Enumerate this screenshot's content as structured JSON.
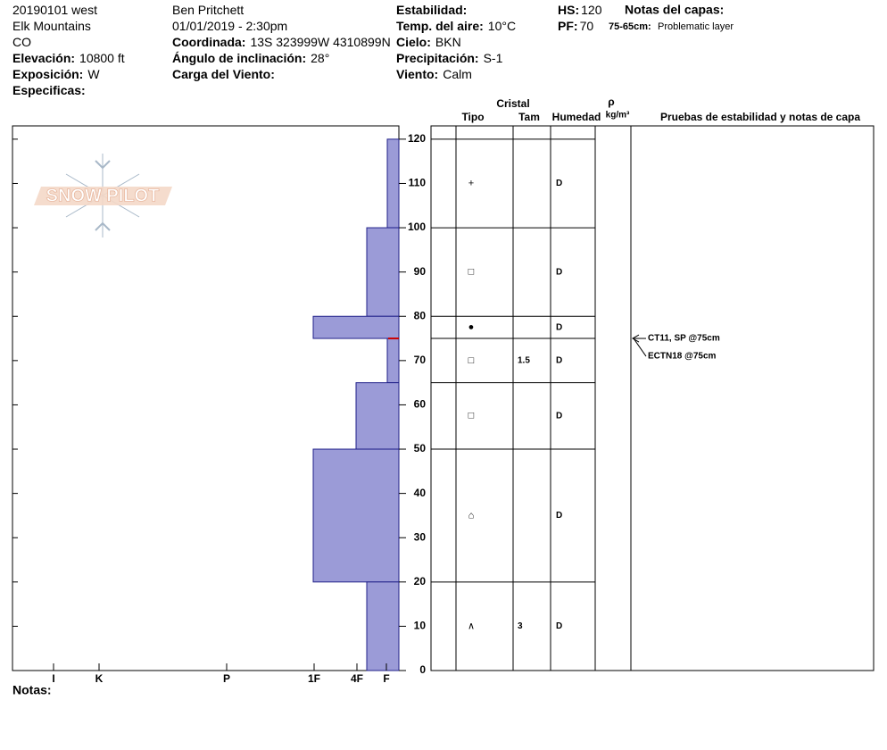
{
  "header": {
    "col1": [
      {
        "value": "20190101 west"
      },
      {
        "value": "Elk Mountains"
      },
      {
        "value": "CO"
      },
      {
        "label": "Elevación:",
        "value": "10800 ft"
      },
      {
        "label": "Exposición:",
        "value": "W"
      },
      {
        "label": "Especificas:"
      }
    ],
    "col2": [
      {
        "value": "Ben Pritchett"
      },
      {
        "value": "01/01/2019 - 2:30pm"
      },
      {
        "label": "Coordinada:",
        "value": "13S 323999W 4310899N"
      },
      {
        "label": "Ángulo de inclinación:",
        "value": "28°"
      },
      {
        "label": "Carga del Viento:"
      }
    ],
    "col3": [
      {
        "label": "Estabilidad:"
      },
      {
        "label": "Temp. del aire:",
        "value": "10°C"
      },
      {
        "label": "Cielo:",
        "value": "BKN"
      },
      {
        "label": "Precipitación:",
        "value": "S-1"
      },
      {
        "label": "Viento:",
        "value": "Calm"
      }
    ],
    "col4": [
      {
        "label": "HS:",
        "value": 120
      },
      {
        "label": "PF:",
        "value": 70
      }
    ],
    "layer_notes_title": "Notas del capas:",
    "layer_note": {
      "label": "75-65cm:",
      "value": "Problematic layer"
    }
  },
  "table_header": {
    "crystal": "Cristal",
    "type": "Tipo",
    "size": "Tam",
    "moisture": "Humedad",
    "density": "ρ",
    "density_unit": "kg/m³",
    "tests": "Pruebas de estabilidad y notas de capa"
  },
  "notes_label": "Notas:",
  "chart_data": {
    "type": "snow-profile",
    "logo": "SNOW PILOT",
    "ylim": [
      0,
      123
    ],
    "yticks": [
      0,
      10,
      20,
      30,
      40,
      50,
      60,
      70,
      80,
      90,
      100,
      110,
      120
    ],
    "xlim": [
      0,
      433
    ],
    "xticks": [
      {
        "value": 387,
        "label": "I"
      },
      {
        "value": 336,
        "label": "K"
      },
      {
        "value": 193,
        "label": "P"
      },
      {
        "value": 95,
        "label": "1F"
      },
      {
        "value": 47,
        "label": "4F"
      },
      {
        "value": 14,
        "label": "F"
      }
    ],
    "color": "#9b9bd7",
    "layers": [
      {
        "top": 120,
        "bottom": 100,
        "hardness": 13,
        "grain": "+",
        "moisture": "D"
      },
      {
        "top": 100,
        "bottom": 80,
        "hardness": 36,
        "grain": "□",
        "moisture": "D"
      },
      {
        "top": 80,
        "bottom": 75,
        "hardness": 96,
        "grain": "●",
        "moisture": "D"
      },
      {
        "top": 75,
        "bottom": 65,
        "hardness": 13,
        "grain": "□",
        "size": 1.5,
        "moisture": "D"
      },
      {
        "top": 65,
        "bottom": 50,
        "hardness": 48,
        "grain": "□",
        "moisture": "D"
      },
      {
        "top": 50,
        "bottom": 20,
        "hardness": 96,
        "grain": "⌂",
        "moisture": "D"
      },
      {
        "top": 20,
        "bottom": 0,
        "hardness": 36,
        "grain": "∧",
        "size": 3,
        "moisture": "D"
      }
    ],
    "tests": [
      {
        "label": "CT11, SP @75cm",
        "depth": 75
      },
      {
        "label": "ECTN18 @75cm",
        "depth": 75
      }
    ]
  }
}
